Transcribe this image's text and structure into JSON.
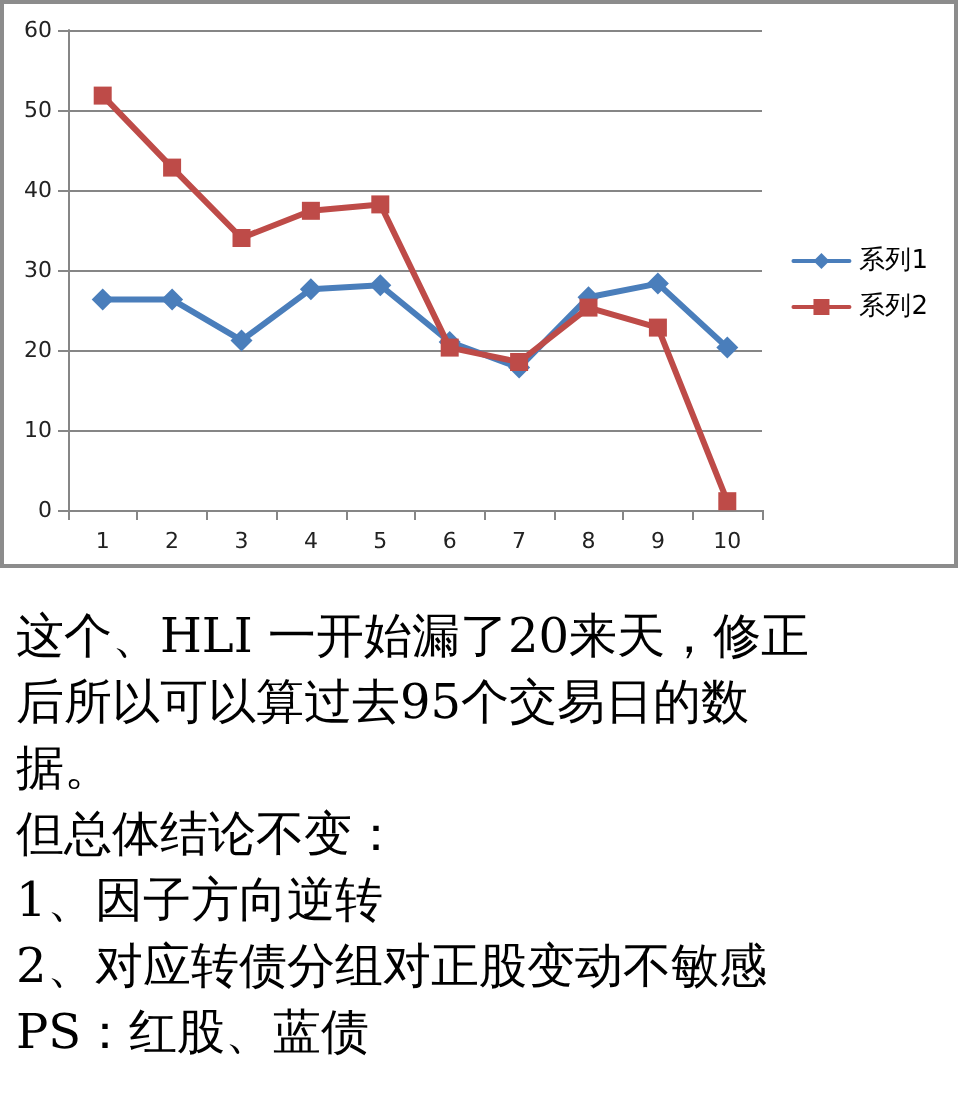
{
  "chart_data": {
    "type": "line",
    "categories": [
      "1",
      "2",
      "3",
      "4",
      "5",
      "6",
      "7",
      "8",
      "9",
      "10"
    ],
    "series": [
      {
        "name": "系列1",
        "color": "#4a7ebb",
        "marker": "diamond",
        "values": [
          26.3,
          26.3,
          21.2,
          27.6,
          28.1,
          21,
          17.8,
          26.6,
          28.3,
          20.3
        ]
      },
      {
        "name": "系列2",
        "color": "#be4b48",
        "marker": "square",
        "values": [
          51.8,
          42.8,
          34,
          37.4,
          38.2,
          20.3,
          18.5,
          25.3,
          22.8,
          1.1
        ]
      }
    ],
    "ylim": [
      0,
      60
    ],
    "yticks": [
      0,
      10,
      20,
      30,
      40,
      50,
      60
    ],
    "grid": "y",
    "legend": "right",
    "annotations": [
      "这个、HLI 一开始漏了20来天，修正后所以可以算过去95个交易日的数据。",
      "但总体结论不变：",
      "1、因子方向逆转",
      "2、对应转债分组对正股变动不敏感",
      "PS：红股、蓝债"
    ]
  }
}
